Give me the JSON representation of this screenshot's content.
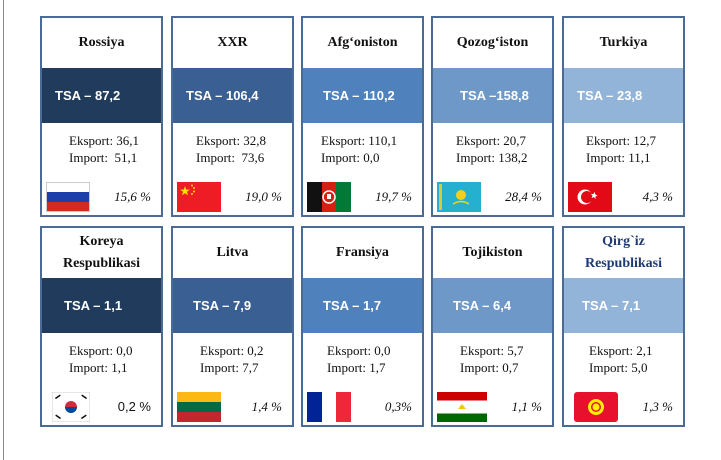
{
  "colors": {
    "border": "#4a6b96",
    "band_dark": "#203b5c",
    "band_mid": "#3a5f92",
    "band_blue": "#4f81bd",
    "band_light": "#6e98c8",
    "band_pale": "#93b4d9"
  },
  "cards": [
    {
      "country": "Rossiya",
      "tsa": "TSA – 87,2",
      "export": "Eksport: 36,1",
      "import": "Import:  51,1",
      "share": "15,6 %",
      "flag": "russia-flag"
    },
    {
      "country": "XXR",
      "tsa": "TSA – 106,4",
      "export": "Eksport: 32,8",
      "import": "Import:  73,6",
      "share": "19,0 %",
      "flag": "china-flag"
    },
    {
      "country": "Afg‘oniston",
      "tsa": "TSA – 110,2",
      "export": "Eksport: 110,1",
      "import": "Import: 0,0",
      "share": "19,7 %",
      "flag": "afghanistan-flag"
    },
    {
      "country": "Qozog‘iston",
      "tsa": "TSA –158,8",
      "export": "Eksport: 20,7",
      "import": "Import: 138,2",
      "share": "28,4 %",
      "flag": "kazakhstan-flag"
    },
    {
      "country": "Turkiya",
      "tsa": "TSA – 23,8",
      "export": "Eksport: 12,7",
      "import": "Import: 11,1",
      "share": "4,3 %",
      "flag": "turkey-flag"
    },
    {
      "country_line1": "Koreya",
      "country_line2": "Respublikasi",
      "tsa": "TSA – 1,1",
      "export": "Eksport: 0,0",
      "import": "Import: 1,1",
      "share": "0,2 %",
      "flag": "south-korea-flag"
    },
    {
      "country": "Litva",
      "tsa": "TSA – 7,9",
      "export": "Eksport: 0,2",
      "import": "Import: 7,7",
      "share": "1,4 %",
      "flag": "lithuania-flag"
    },
    {
      "country": "Fransiya",
      "tsa": "TSA – 1,7",
      "export": "Eksport: 0,0",
      "import": "Import: 1,7",
      "share": "0,3%",
      "flag": "france-flag"
    },
    {
      "country": "Tojikiston",
      "tsa": "TSA – 6,4",
      "export": "Eksport: 5,7",
      "import": "Import: 0,7",
      "share": "1,1 %",
      "flag": "tajikistan-flag"
    },
    {
      "country_line1": "Qirg`iz",
      "country_line2": "Respublikasi",
      "tsa": "TSA – 7,1",
      "export": "Eksport: 2,1",
      "import": "Import: 5,0",
      "share": "1,3 %",
      "flag": "kyrgyzstan-flag"
    }
  ]
}
